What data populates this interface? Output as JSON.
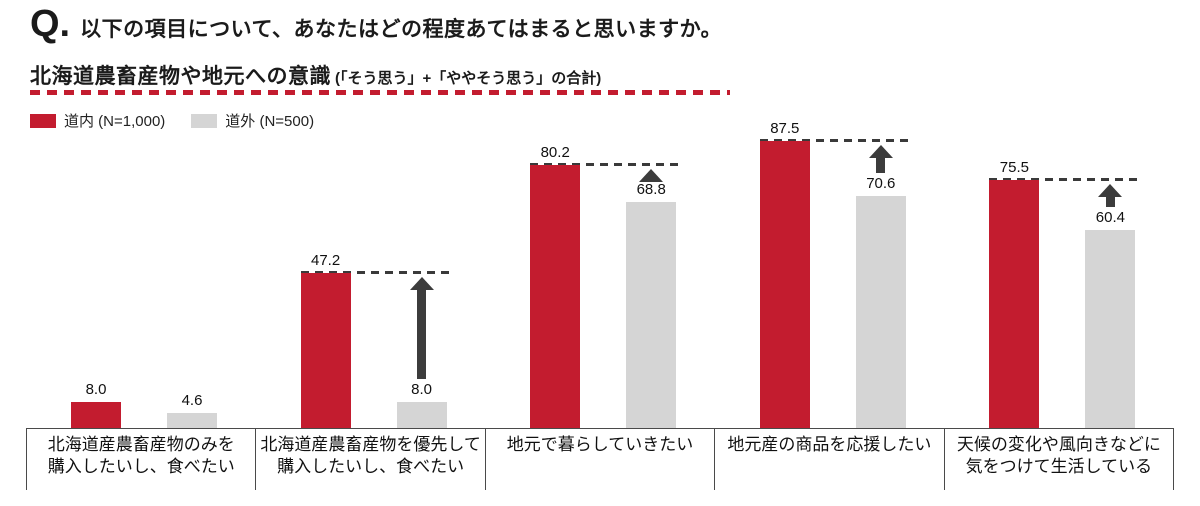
{
  "header": {
    "q_prefix": "Q.",
    "question": "以下の項目について、あなたはどの程度あてはまると思いますか。",
    "subtitle": "北海道農畜産物や地元への意識",
    "subtitle_note": "(「そう思う」+「ややそう思う」の合計)"
  },
  "legend": [
    {
      "label": "道内 (N=1,000)",
      "color": "#c31c2f"
    },
    {
      "label": "道外 (N=500)",
      "color": "#d5d5d5"
    }
  ],
  "chart_data": {
    "type": "bar",
    "title": "北海道農畜産物や地元への意識(「そう思う」+「ややそう思う」の合計)",
    "categories": [
      "北海道産農畜産物のみを\n購入したいし、食べたい",
      "北海道産農畜産物を優先して\n購入したいし、食べたい",
      "地元で暮らしていきたい",
      "地元産の商品を応援したい",
      "天候の変化や風向きなどに\n気をつけて生活している"
    ],
    "series": [
      {
        "name": "道内 (N=1,000)",
        "color": "#c31c2f",
        "values": [
          8.0,
          47.2,
          80.2,
          87.5,
          75.5
        ]
      },
      {
        "name": "道外 (N=500)",
        "color": "#d5d5d5",
        "values": [
          4.6,
          8.0,
          68.8,
          70.6,
          60.4
        ]
      }
    ],
    "value_labels": true,
    "ylim": [
      0,
      100
    ],
    "xlabel": "",
    "ylabel": "",
    "grid": false,
    "legend_position": "top-left",
    "gap_arrow": [
      false,
      true,
      true,
      true,
      true
    ],
    "gap_annotation": "道内の水準まで黒破線を引き、道外の棒から上向き矢印で差を強調"
  },
  "colors": {
    "accent_red": "#c31c2f",
    "bar_gray": "#d5d5d5",
    "arrow_dark": "#3c3c3c",
    "axis_line": "#4a4a4a",
    "text": "#1b1b1b"
  }
}
